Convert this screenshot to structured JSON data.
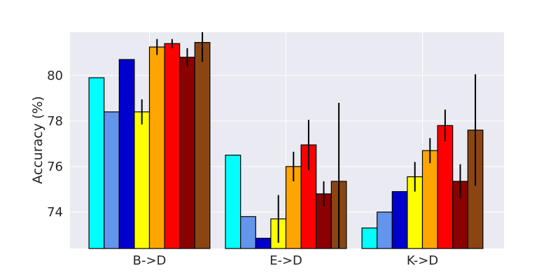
{
  "chart_data": {
    "type": "bar",
    "ylabel": "Accuracy (%)",
    "xlabel": "",
    "title": "",
    "categories": [
      "B->D",
      "E->D",
      "K->D"
    ],
    "ylim": [
      72.4,
      81.9
    ],
    "yticks": [
      74,
      76,
      78,
      80
    ],
    "grid": true,
    "legend": "none",
    "series": [
      {
        "color": "#00ffff",
        "values": [
          79.9,
          76.5,
          73.3
        ],
        "errors": [
          null,
          null,
          null
        ]
      },
      {
        "color": "#6495ed",
        "values": [
          78.4,
          73.8,
          74.0
        ],
        "errors": [
          null,
          null,
          null
        ]
      },
      {
        "color": "#0000cd",
        "values": [
          80.7,
          72.85,
          74.9
        ],
        "errors": [
          null,
          null,
          null
        ]
      },
      {
        "color": "#ffff00",
        "values": [
          78.4,
          73.7,
          75.55
        ],
        "errors": [
          0.55,
          1.05,
          0.65
        ]
      },
      {
        "color": "#ffa500",
        "values": [
          81.25,
          76.0,
          76.7
        ],
        "errors": [
          0.35,
          0.65,
          0.55
        ]
      },
      {
        "color": "#ff0000",
        "values": [
          81.4,
          76.95,
          77.8
        ],
        "errors": [
          0.2,
          1.1,
          0.7
        ]
      },
      {
        "color": "#8b0000",
        "values": [
          80.8,
          74.8,
          75.35
        ],
        "errors": [
          0.4,
          0.55,
          0.75
        ]
      },
      {
        "color": "#8b4513",
        "values": [
          81.45,
          75.35,
          77.6
        ],
        "errors": [
          0.85,
          3.45,
          2.45
        ]
      }
    ]
  }
}
